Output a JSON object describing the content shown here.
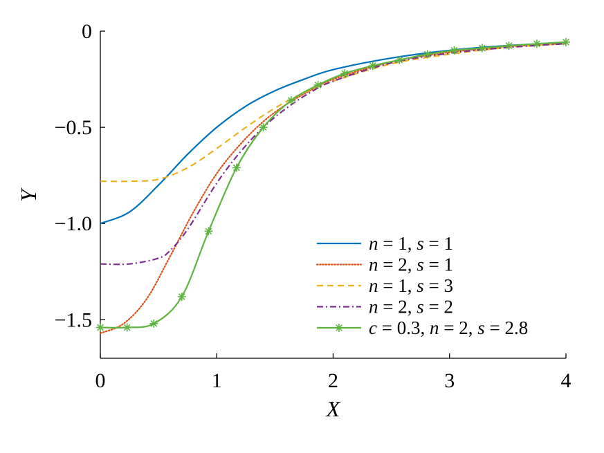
{
  "chart_data": {
    "type": "line",
    "xlabel": "X",
    "ylabel": "Y",
    "xlim": [
      0,
      4
    ],
    "ylim": [
      -1.7,
      0
    ],
    "xticks": [
      0,
      1,
      2,
      3,
      4
    ],
    "xtick_labels": [
      "0",
      "1",
      "2",
      "3",
      "4"
    ],
    "yticks": [
      0,
      -0.5,
      -1.0,
      -1.5
    ],
    "ytick_labels": [
      "0",
      "−0.5",
      "−1.0",
      "−1.5"
    ],
    "grid": false,
    "legend_position": "lower-right",
    "series": [
      {
        "name": "n = 1, s = 1",
        "legend": [
          {
            "t": "n",
            "i": true
          },
          {
            "t": " = 1, "
          },
          {
            "t": "s",
            "i": true
          },
          {
            "t": " = 1"
          }
        ],
        "color": "#0072BD",
        "style": "solid",
        "x": [
          0,
          0.25,
          0.5,
          0.75,
          1.0,
          1.25,
          1.5,
          1.75,
          2.0,
          2.5,
          3.0,
          3.5,
          4.0
        ],
        "y": [
          -1.0,
          -0.94,
          -0.8,
          -0.64,
          -0.5,
          -0.39,
          -0.31,
          -0.25,
          -0.2,
          -0.14,
          -0.1,
          -0.075,
          -0.06
        ]
      },
      {
        "name": "n = 2, s = 1",
        "legend": [
          {
            "t": "n",
            "i": true
          },
          {
            "t": " = 2, "
          },
          {
            "t": "s",
            "i": true
          },
          {
            "t": " = 1"
          }
        ],
        "color": "#D95319",
        "style": "dotted",
        "x": [
          0,
          0.2,
          0.4,
          0.6,
          0.8,
          1.0,
          1.2,
          1.4,
          1.6,
          1.8,
          2.0,
          2.5,
          3.0,
          3.5,
          4.0
        ],
        "y": [
          -1.57,
          -1.52,
          -1.39,
          -1.17,
          -0.94,
          -0.74,
          -0.59,
          -0.47,
          -0.38,
          -0.31,
          -0.25,
          -0.16,
          -0.11,
          -0.08,
          -0.065
        ]
      },
      {
        "name": "n = 1, s = 3",
        "legend": [
          {
            "t": "n",
            "i": true
          },
          {
            "t": " = 1, "
          },
          {
            "t": "s",
            "i": true
          },
          {
            "t": " = 3"
          }
        ],
        "color": "#EDB120",
        "style": "dashed",
        "x": [
          0,
          0.25,
          0.5,
          0.75,
          1.0,
          1.25,
          1.5,
          1.75,
          2.0,
          2.5,
          3.0,
          3.5,
          4.0
        ],
        "y": [
          -0.78,
          -0.78,
          -0.77,
          -0.71,
          -0.61,
          -0.5,
          -0.4,
          -0.32,
          -0.26,
          -0.17,
          -0.12,
          -0.085,
          -0.065
        ]
      },
      {
        "name": "n = 2, s = 2",
        "legend": [
          {
            "t": "n",
            "i": true
          },
          {
            "t": " = 2, "
          },
          {
            "t": "s",
            "i": true
          },
          {
            "t": " = 2"
          }
        ],
        "color": "#7E2F8E",
        "style": "dashdot",
        "x": [
          0,
          0.25,
          0.5,
          0.6,
          0.75,
          1.0,
          1.2,
          1.4,
          1.6,
          1.8,
          2.0,
          2.5,
          3.0,
          3.5,
          4.0
        ],
        "y": [
          -1.21,
          -1.21,
          -1.18,
          -1.14,
          -1.03,
          -0.79,
          -0.63,
          -0.5,
          -0.4,
          -0.32,
          -0.26,
          -0.165,
          -0.115,
          -0.085,
          -0.065
        ]
      },
      {
        "name": "c = 0.3, n = 2, s = 2.8",
        "legend": [
          {
            "t": "c",
            "i": true
          },
          {
            "t": " = 0.3, "
          },
          {
            "t": "n",
            "i": true
          },
          {
            "t": " = 2, "
          },
          {
            "t": "s",
            "i": true
          },
          {
            "t": " = 2.8"
          }
        ],
        "color": "#5FB43F",
        "style": "solid",
        "marker": "asterisk",
        "x": [
          0,
          0.23,
          0.46,
          0.7,
          0.93,
          1.17,
          1.4,
          1.64,
          1.87,
          2.1,
          2.34,
          2.57,
          2.81,
          3.04,
          3.28,
          3.51,
          3.75,
          4.0
        ],
        "y": [
          -1.54,
          -1.54,
          -1.52,
          -1.38,
          -1.04,
          -0.71,
          -0.5,
          -0.36,
          -0.28,
          -0.22,
          -0.18,
          -0.15,
          -0.12,
          -0.1,
          -0.088,
          -0.076,
          -0.066,
          -0.057
        ]
      }
    ]
  }
}
